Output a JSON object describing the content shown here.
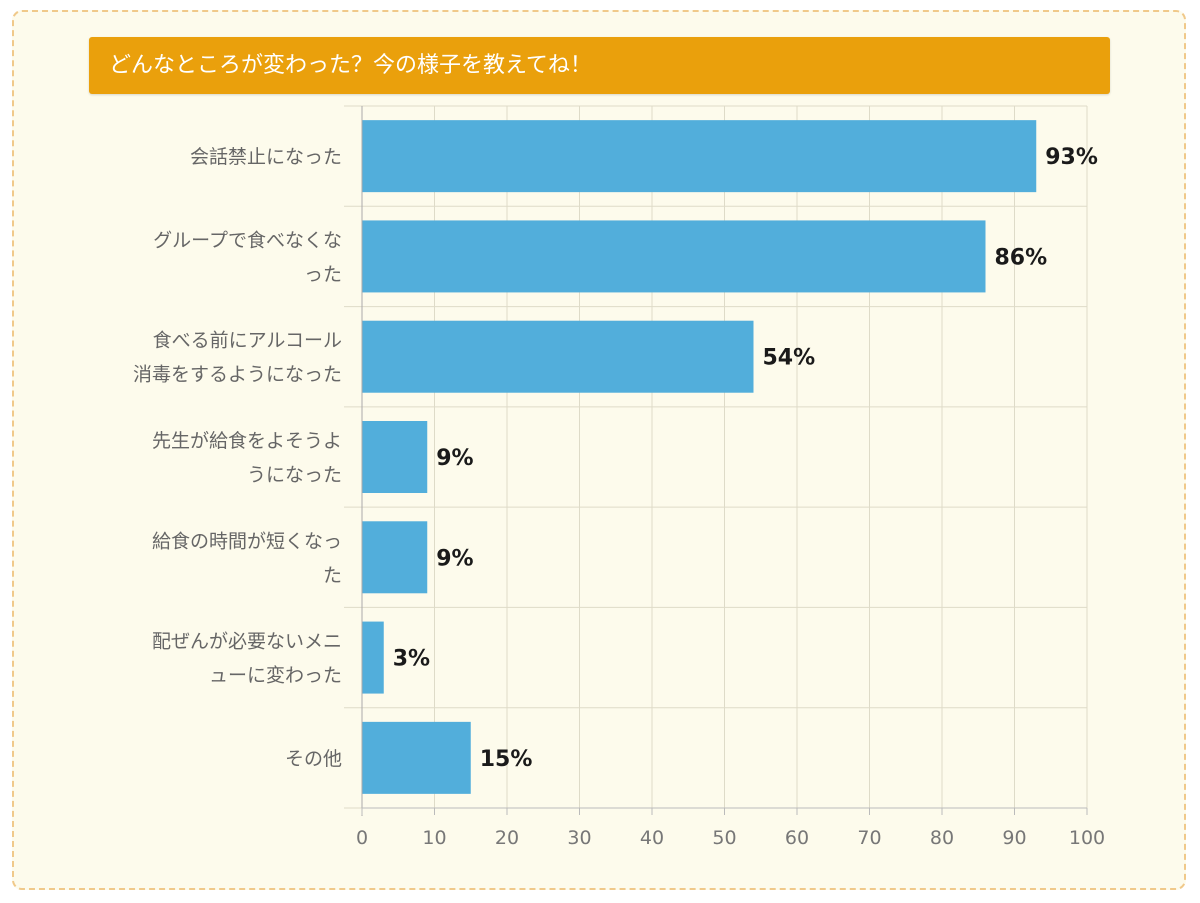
{
  "title": "どんなところが変わった？今の様子を教えてね！",
  "colors": {
    "frame_bg": "#fdfbec",
    "frame_border": "#f0c98a",
    "title_bg": "#eaa00c",
    "title_text": "#ffffff",
    "bar": "#52aedb",
    "grid": "#dedbc8"
  },
  "chart_data": {
    "type": "bar",
    "orientation": "horizontal",
    "categories": [
      [
        "会話禁止になった"
      ],
      [
        "グループで食べなくな",
        "った"
      ],
      [
        "食べる前にアルコール",
        "消毒をするようになった"
      ],
      [
        "先生が給食をよそうよ",
        "うになった"
      ],
      [
        "給食の時間が短くなっ",
        "た"
      ],
      [
        "配ぜんが必要ないメニ",
        "ューに変わった"
      ],
      [
        "その他"
      ]
    ],
    "values": [
      93,
      86,
      54,
      9,
      9,
      3,
      15
    ],
    "data_labels": [
      "93%",
      "86%",
      "54%",
      "9%",
      "9%",
      "3%",
      "15%"
    ],
    "xlim": [
      0,
      100
    ],
    "x_ticks": [
      0,
      10,
      20,
      30,
      40,
      50,
      60,
      70,
      80,
      90,
      100
    ],
    "x_tick_labels": [
      "0",
      "10",
      "20",
      "30",
      "40",
      "50",
      "60",
      "70",
      "80",
      "90",
      "100"
    ],
    "grid": true,
    "legend": "none"
  }
}
